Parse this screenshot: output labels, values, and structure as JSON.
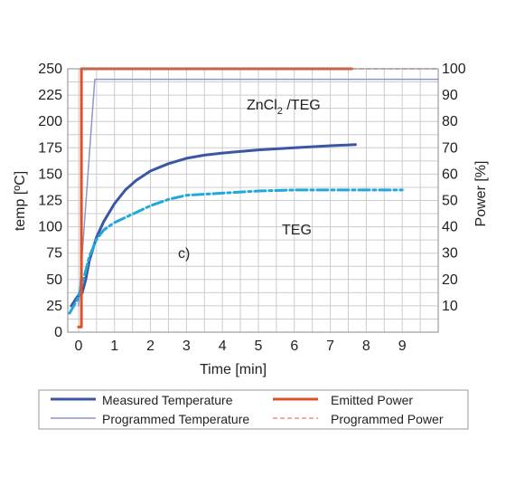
{
  "chart_data": {
    "type": "line",
    "xlabel": "Time [min]",
    "ylabel": "temp [ºC]",
    "y2label": "Power [%]",
    "xlim": [
      -0.3,
      10
    ],
    "ylim": [
      0,
      250
    ],
    "y2lim": [
      0,
      100
    ],
    "x_ticks": [
      "0",
      "1",
      "2",
      "3",
      "4",
      "5",
      "6",
      "7",
      "8",
      "9"
    ],
    "y_ticks": [
      "0",
      "25",
      "50",
      "75",
      "100",
      "125",
      "150",
      "175",
      "200",
      "225",
      "250"
    ],
    "y2_ticks": [
      "10",
      "20",
      "30",
      "40",
      "50",
      "60",
      "70",
      "80",
      "90",
      "100"
    ],
    "grid": true,
    "legend_position": "bottom",
    "annotations": {
      "zncl2_main": "ZnCl",
      "zncl2_sub": "2",
      "zncl2_rest": " /TEG",
      "teg": "TEG",
      "panel": "c)"
    },
    "colors": {
      "measured": "#3b57a3",
      "programmed_temp": "#8e96c8",
      "emitted": "#e0502a",
      "programmed_power": "#e8937a",
      "teg": "#1fa8d8",
      "grid": "#cccccc"
    },
    "series": [
      {
        "name": "Measured Temperature",
        "axis": "left",
        "x": [
          -0.2,
          -0.05,
          0.0,
          0.1,
          0.2,
          0.3,
          0.5,
          0.7,
          1.0,
          1.3,
          1.6,
          2.0,
          2.5,
          3.0,
          3.5,
          4.0,
          5.0,
          6.0,
          7.0,
          7.7
        ],
        "y": [
          25,
          33,
          35,
          37,
          50,
          68,
          90,
          105,
          122,
          135,
          144,
          153,
          160,
          165,
          168,
          170,
          173,
          175,
          177,
          178
        ]
      },
      {
        "name": "Programmed Temperature",
        "axis": "left",
        "x": [
          0.0,
          0.45,
          10.0
        ],
        "y": [
          25,
          240,
          240
        ]
      },
      {
        "name": "Emitted Power",
        "axis": "right",
        "x": [
          0.0,
          0.08,
          0.08,
          7.6
        ],
        "y": [
          2,
          2,
          100,
          100
        ]
      },
      {
        "name": "Programmed Power",
        "axis": "right",
        "x": [
          7.6,
          10.0
        ],
        "y": [
          100,
          100
        ]
      },
      {
        "name": "TEG",
        "axis": "left",
        "x": [
          -0.25,
          -0.05,
          0.1,
          0.3,
          0.5,
          0.7,
          1.0,
          1.5,
          2.0,
          2.5,
          3.0,
          4.0,
          5.0,
          6.0,
          7.0,
          8.0,
          9.0
        ],
        "y": [
          18,
          30,
          45,
          72,
          88,
          97,
          104,
          112,
          120,
          126,
          130,
          132,
          134,
          135,
          135,
          135,
          135
        ]
      }
    ]
  }
}
